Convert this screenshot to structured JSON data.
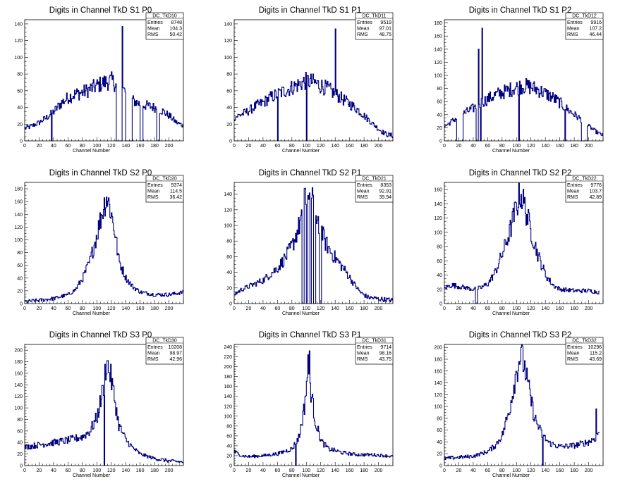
{
  "chart_data": [
    {
      "type": "histogram",
      "title": "Digits in Channel TkD S1 P0",
      "xlabel": "Channel Number",
      "xlim": [
        0,
        220
      ],
      "ylim": [
        0,
        145
      ],
      "yticks": [
        0,
        20,
        40,
        60,
        80,
        100,
        120,
        140
      ],
      "stats": {
        "name": "DC_TkD10",
        "entries": "8748",
        "mean": "104.3",
        "rms": "50.42"
      },
      "curve": [
        [
          0,
          15
        ],
        [
          10,
          18
        ],
        [
          20,
          22
        ],
        [
          30,
          28
        ],
        [
          40,
          35
        ],
        [
          50,
          45
        ],
        [
          60,
          52
        ],
        [
          70,
          56
        ],
        [
          80,
          58
        ],
        [
          90,
          62
        ],
        [
          100,
          66
        ],
        [
          110,
          70
        ],
        [
          120,
          72
        ],
        [
          130,
          65
        ],
        [
          140,
          58
        ],
        [
          150,
          48
        ],
        [
          160,
          44
        ],
        [
          170,
          42
        ],
        [
          180,
          40
        ],
        [
          190,
          36
        ],
        [
          200,
          30
        ],
        [
          210,
          22
        ],
        [
          220,
          18
        ]
      ],
      "spikes": [
        [
          37,
          0
        ],
        [
          135,
          137
        ],
        [
          128,
          0
        ],
        [
          140,
          0
        ],
        [
          232,
          0
        ],
        [
          162,
          0
        ],
        [
          185,
          0
        ],
        [
          225,
          0
        ]
      ],
      "gaps": [
        [
          127,
          134
        ],
        [
          141,
          148
        ],
        [
          160,
          163
        ],
        [
          183,
          186
        ],
        [
          224,
          226
        ]
      ]
    },
    {
      "type": "histogram",
      "title": "Digits in Channel TkD S1 P1",
      "xlabel": "Channel Number",
      "xlim": [
        0,
        220
      ],
      "ylim": [
        0,
        145
      ],
      "yticks": [
        0,
        20,
        40,
        60,
        80,
        100,
        120,
        140
      ],
      "stats": {
        "name": "DC_TkD11",
        "entries": "9519",
        "mean": "97.01",
        "rms": "48.75"
      },
      "curve": [
        [
          0,
          28
        ],
        [
          10,
          32
        ],
        [
          20,
          36
        ],
        [
          30,
          42
        ],
        [
          40,
          46
        ],
        [
          50,
          52
        ],
        [
          60,
          56
        ],
        [
          70,
          60
        ],
        [
          80,
          64
        ],
        [
          90,
          68
        ],
        [
          100,
          72
        ],
        [
          110,
          70
        ],
        [
          120,
          66
        ],
        [
          130,
          62
        ],
        [
          140,
          56
        ],
        [
          150,
          50
        ],
        [
          160,
          44
        ],
        [
          170,
          38
        ],
        [
          180,
          30
        ],
        [
          190,
          22
        ],
        [
          200,
          14
        ],
        [
          210,
          8
        ],
        [
          220,
          6
        ]
      ],
      "spikes": [
        [
          60,
          0
        ],
        [
          100,
          0
        ],
        [
          140,
          134
        ]
      ],
      "gaps": []
    },
    {
      "type": "histogram",
      "title": "Digits in Channel TkD S1 P2",
      "xlabel": "Channel Number",
      "xlim": [
        0,
        220
      ],
      "ylim": [
        0,
        185
      ],
      "yticks": [
        0,
        20,
        40,
        60,
        80,
        100,
        120,
        140,
        160,
        180
      ],
      "stats": {
        "name": "DC_TkD12",
        "entries": "9916",
        "mean": "107.2",
        "rms": "46.44"
      },
      "curve": [
        [
          0,
          22
        ],
        [
          10,
          30
        ],
        [
          20,
          38
        ],
        [
          30,
          44
        ],
        [
          40,
          50
        ],
        [
          50,
          58
        ],
        [
          60,
          64
        ],
        [
          70,
          70
        ],
        [
          80,
          74
        ],
        [
          90,
          78
        ],
        [
          100,
          82
        ],
        [
          110,
          84
        ],
        [
          120,
          82
        ],
        [
          130,
          78
        ],
        [
          140,
          72
        ],
        [
          150,
          66
        ],
        [
          160,
          58
        ],
        [
          170,
          48
        ],
        [
          180,
          40
        ],
        [
          190,
          32
        ],
        [
          200,
          22
        ],
        [
          210,
          14
        ],
        [
          220,
          8
        ]
      ],
      "spikes": [
        [
          47,
          140
        ],
        [
          52,
          172
        ],
        [
          103,
          0
        ],
        [
          167,
          0
        ],
        [
          50,
          0
        ]
      ],
      "gaps": [
        [
          17,
          25
        ],
        [
          44,
          46
        ],
        [
          190,
          197
        ]
      ]
    },
    {
      "type": "histogram",
      "title": "Digits in Channel TkD S2 P0",
      "xlabel": "Channel Number",
      "xlim": [
        0,
        220
      ],
      "ylim": [
        0,
        190
      ],
      "yticks": [
        0,
        20,
        40,
        60,
        80,
        100,
        120,
        140,
        160,
        180
      ],
      "stats": {
        "name": "DC_TkD20",
        "entries": "9374",
        "mean": "114.5",
        "rms": "36.42"
      },
      "curve": [
        [
          0,
          3
        ],
        [
          20,
          5
        ],
        [
          40,
          8
        ],
        [
          60,
          14
        ],
        [
          70,
          22
        ],
        [
          80,
          40
        ],
        [
          90,
          66
        ],
        [
          100,
          110
        ],
        [
          108,
          148
        ],
        [
          113,
          168
        ],
        [
          118,
          150
        ],
        [
          125,
          110
        ],
        [
          130,
          68
        ],
        [
          140,
          40
        ],
        [
          150,
          26
        ],
        [
          160,
          18
        ],
        [
          180,
          14
        ],
        [
          200,
          14
        ],
        [
          220,
          18
        ]
      ],
      "spikes": [],
      "gaps": []
    },
    {
      "type": "histogram",
      "title": "Digits in Channel TkD S2 P1",
      "xlabel": "Channel Number",
      "xlim": [
        0,
        220
      ],
      "ylim": [
        0,
        155
      ],
      "yticks": [
        0,
        20,
        40,
        60,
        80,
        100,
        120,
        140
      ],
      "stats": {
        "name": "DC_TkD21",
        "entries": "8353",
        "mean": "92.91",
        "rms": "39.94"
      },
      "curve": [
        [
          0,
          12
        ],
        [
          10,
          18
        ],
        [
          20,
          22
        ],
        [
          30,
          26
        ],
        [
          40,
          30
        ],
        [
          50,
          38
        ],
        [
          60,
          46
        ],
        [
          70,
          58
        ],
        [
          80,
          74
        ],
        [
          90,
          100
        ],
        [
          97,
          130
        ],
        [
          102,
          140
        ],
        [
          108,
          130
        ],
        [
          115,
          110
        ],
        [
          125,
          80
        ],
        [
          135,
          64
        ],
        [
          145,
          52
        ],
        [
          155,
          40
        ],
        [
          165,
          26
        ],
        [
          175,
          14
        ],
        [
          185,
          8
        ],
        [
          200,
          6
        ],
        [
          220,
          4
        ]
      ],
      "spikes": [],
      "gaps": [
        [
          94,
          96
        ],
        [
          100,
          101
        ],
        [
          105,
          106
        ],
        [
          110,
          112
        ],
        [
          118,
          120
        ]
      ]
    },
    {
      "type": "histogram",
      "title": "Digits in Channel TkD S2 P2",
      "xlabel": "Channel Number",
      "xlim": [
        0,
        220
      ],
      "ylim": [
        0,
        170
      ],
      "yticks": [
        0,
        20,
        40,
        60,
        80,
        100,
        120,
        140,
        160
      ],
      "stats": {
        "name": "DC_TkD22",
        "entries": "9776",
        "mean": "103.7",
        "rms": "42.89"
      },
      "curve": [
        [
          0,
          22
        ],
        [
          10,
          26
        ],
        [
          20,
          24
        ],
        [
          30,
          22
        ],
        [
          40,
          20
        ],
        [
          50,
          22
        ],
        [
          60,
          28
        ],
        [
          70,
          44
        ],
        [
          80,
          70
        ],
        [
          90,
          100
        ],
        [
          100,
          138
        ],
        [
          105,
          155
        ],
        [
          110,
          140
        ],
        [
          120,
          100
        ],
        [
          130,
          66
        ],
        [
          140,
          40
        ],
        [
          150,
          26
        ],
        [
          160,
          20
        ],
        [
          180,
          18
        ],
        [
          200,
          18
        ],
        [
          215,
          16
        ]
      ],
      "spikes": [],
      "gaps": [
        [
          43,
          45
        ]
      ]
    },
    {
      "type": "histogram",
      "title": "Digits in Channel TkD S3 P0",
      "xlabel": "Channel Number",
      "xlim": [
        0,
        220
      ],
      "ylim": [
        0,
        210
      ],
      "yticks": [
        0,
        20,
        40,
        60,
        80,
        100,
        120,
        140,
        160,
        180,
        200
      ],
      "stats": {
        "name": "DC_TkD30",
        "entries": "10208",
        "mean": "98.97",
        "rms": "42.96"
      },
      "curve": [
        [
          0,
          32
        ],
        [
          20,
          36
        ],
        [
          40,
          40
        ],
        [
          60,
          44
        ],
        [
          80,
          50
        ],
        [
          90,
          60
        ],
        [
          100,
          84
        ],
        [
          108,
          130
        ],
        [
          113,
          180
        ],
        [
          118,
          160
        ],
        [
          125,
          110
        ],
        [
          130,
          70
        ],
        [
          140,
          44
        ],
        [
          150,
          30
        ],
        [
          160,
          20
        ],
        [
          170,
          16
        ],
        [
          180,
          12
        ],
        [
          200,
          8
        ],
        [
          220,
          6
        ]
      ],
      "spikes": [
        [
          110,
          0
        ]
      ],
      "gaps": []
    },
    {
      "type": "histogram",
      "title": "Digits in Channel TkD S3 P1",
      "xlabel": "Channel Number",
      "xlim": [
        0,
        220
      ],
      "ylim": [
        0,
        245
      ],
      "yticks": [
        0,
        20,
        40,
        60,
        80,
        100,
        120,
        140,
        160,
        180,
        200,
        220,
        240
      ],
      "stats": {
        "name": "DC_TkD31",
        "entries": "9714",
        "mean": "98.16",
        "rms": "43.75"
      },
      "curve": [
        [
          0,
          28
        ],
        [
          10,
          20
        ],
        [
          20,
          18
        ],
        [
          40,
          20
        ],
        [
          60,
          24
        ],
        [
          80,
          34
        ],
        [
          90,
          60
        ],
        [
          97,
          120
        ],
        [
          102,
          200
        ],
        [
          106,
          150
        ],
        [
          112,
          90
        ],
        [
          120,
          50
        ],
        [
          130,
          34
        ],
        [
          150,
          26
        ],
        [
          170,
          22
        ],
        [
          190,
          22
        ],
        [
          210,
          20
        ],
        [
          220,
          18
        ]
      ],
      "spikes": [
        [
          85,
          0
        ],
        [
          104,
          232
        ]
      ],
      "gaps": []
    },
    {
      "type": "histogram",
      "title": "Digits in Channel TkD S3 P2",
      "xlabel": "Channel Number",
      "xlim": [
        0,
        220
      ],
      "ylim": [
        0,
        205
      ],
      "yticks": [
        0,
        20,
        40,
        60,
        80,
        100,
        120,
        140,
        160,
        180,
        200
      ],
      "stats": {
        "name": "DC_TkD32",
        "entries": "10296",
        "mean": "115.2",
        "rms": "43.69"
      },
      "curve": [
        [
          0,
          12
        ],
        [
          20,
          14
        ],
        [
          40,
          16
        ],
        [
          60,
          24
        ],
        [
          70,
          34
        ],
        [
          80,
          52
        ],
        [
          90,
          96
        ],
        [
          98,
          150
        ],
        [
          105,
          188
        ],
        [
          110,
          172
        ],
        [
          118,
          120
        ],
        [
          125,
          80
        ],
        [
          135,
          52
        ],
        [
          145,
          38
        ],
        [
          160,
          32
        ],
        [
          180,
          34
        ],
        [
          200,
          40
        ],
        [
          210,
          48
        ],
        [
          215,
          60
        ]
      ],
      "spikes": [
        [
          210,
          96
        ],
        [
          136,
          0
        ]
      ],
      "gaps": []
    }
  ],
  "xticks": [
    0,
    20,
    40,
    60,
    80,
    100,
    120,
    140,
    160,
    180,
    200
  ],
  "stat_labels": {
    "entries": "Entries",
    "mean": "Mean",
    "rms": "RMS"
  },
  "line_color": "#000080"
}
